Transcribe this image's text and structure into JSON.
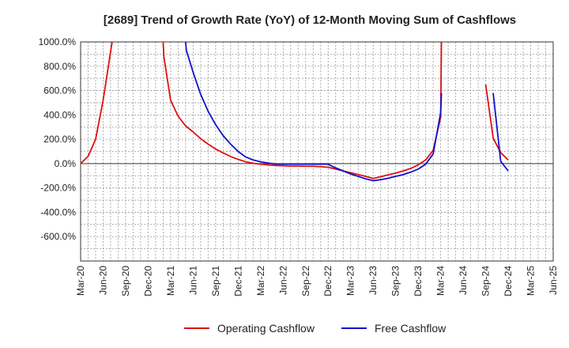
{
  "chart_data": {
    "type": "line",
    "title": "[2689]  Trend of Growth Rate (YoY) of 12-Month Moving Sum of Cashflows",
    "xlabel": "",
    "ylabel": "",
    "ylim": [
      -800,
      1000
    ],
    "yticks": [
      1000,
      800,
      600,
      400,
      200,
      0,
      -200,
      -400,
      -600
    ],
    "ytick_labels": [
      "1000.0%",
      "800.0%",
      "600.0%",
      "400.0%",
      "200.0%",
      "0.0%",
      "-200.0%",
      "-400.0%",
      "-600.0%"
    ],
    "xlim": [
      "2020-03",
      "2025-06"
    ],
    "xtick_labels": [
      "Mar-20",
      "Jun-20",
      "Sep-20",
      "Dec-20",
      "Mar-21",
      "Jun-21",
      "Sep-21",
      "Dec-21",
      "Mar-22",
      "Jun-22",
      "Sep-22",
      "Dec-22",
      "Mar-23",
      "Jun-23",
      "Sep-23",
      "Dec-23",
      "Mar-24",
      "Jun-24",
      "Sep-24",
      "Dec-24",
      "Mar-25",
      "Jun-25"
    ],
    "grid": true,
    "legend_position": "bottom",
    "series": [
      {
        "name": "Operating Cashflow",
        "color": "#dd1111",
        "points": [
          [
            "2020-03",
            0
          ],
          [
            "2020-04",
            60
          ],
          [
            "2020-05",
            200
          ],
          [
            "2020-06",
            520
          ],
          [
            "2020-07",
            920
          ],
          [
            "2020-07.2",
            1000
          ],
          null,
          [
            "2021-02",
            1000
          ],
          [
            "2021-02.1",
            880
          ],
          [
            "2021-03",
            520
          ],
          [
            "2021-04",
            390
          ],
          [
            "2021-05",
            310
          ],
          [
            "2021-06",
            260
          ],
          [
            "2021-07",
            205
          ],
          [
            "2021-08",
            160
          ],
          [
            "2021-09",
            120
          ],
          [
            "2021-10",
            88
          ],
          [
            "2021-11",
            58
          ],
          [
            "2021-12",
            35
          ],
          [
            "2022-01",
            15
          ],
          [
            "2022-02",
            3
          ],
          [
            "2022-03",
            -5
          ],
          [
            "2022-04",
            -10
          ],
          [
            "2022-05",
            -15
          ],
          [
            "2022-06",
            -18
          ],
          [
            "2022-07",
            -20
          ],
          [
            "2022-08",
            -20
          ],
          [
            "2022-09",
            -22
          ],
          [
            "2022-10",
            -22
          ],
          [
            "2022-11",
            -25
          ],
          [
            "2022-12",
            -30
          ],
          [
            "2023-01",
            -45
          ],
          [
            "2023-02",
            -60
          ],
          [
            "2023-03",
            -75
          ],
          [
            "2023-04",
            -90
          ],
          [
            "2023-05",
            -105
          ],
          [
            "2023-06",
            -122
          ],
          [
            "2023-07",
            -108
          ],
          [
            "2023-08",
            -92
          ],
          [
            "2023-09",
            -78
          ],
          [
            "2023-10",
            -60
          ],
          [
            "2023-11",
            -40
          ],
          [
            "2023-12",
            -10
          ],
          [
            "2024-01",
            30
          ],
          [
            "2024-02",
            110
          ],
          [
            "2024-03",
            380
          ],
          [
            "2024-03.1",
            1000
          ],
          null,
          [
            "2024-09",
            650
          ],
          [
            "2024-10",
            210
          ],
          [
            "2024-11",
            90
          ],
          [
            "2024-12",
            30
          ]
        ]
      },
      {
        "name": "Free Cashflow",
        "color": "#1111cc",
        "points": [
          [
            "2021-05",
            1000
          ],
          [
            "2021-05.1",
            930
          ],
          [
            "2021-06",
            750
          ],
          [
            "2021-07",
            570
          ],
          [
            "2021-08",
            430
          ],
          [
            "2021-09",
            320
          ],
          [
            "2021-10",
            230
          ],
          [
            "2021-11",
            160
          ],
          [
            "2021-12",
            100
          ],
          [
            "2022-01",
            55
          ],
          [
            "2022-02",
            30
          ],
          [
            "2022-03",
            15
          ],
          [
            "2022-04",
            5
          ],
          [
            "2022-05",
            -3
          ],
          [
            "2022-06",
            -5
          ],
          [
            "2022-07",
            -5
          ],
          [
            "2022-08",
            -5
          ],
          [
            "2022-09",
            -5
          ],
          [
            "2022-10",
            -5
          ],
          [
            "2022-11",
            -5
          ],
          [
            "2022-12",
            -5
          ],
          [
            "2023-01",
            -35
          ],
          [
            "2023-02",
            -60
          ],
          [
            "2023-03",
            -85
          ],
          [
            "2023-04",
            -105
          ],
          [
            "2023-05",
            -125
          ],
          [
            "2023-06",
            -140
          ],
          [
            "2023-07",
            -132
          ],
          [
            "2023-08",
            -120
          ],
          [
            "2023-09",
            -105
          ],
          [
            "2023-10",
            -90
          ],
          [
            "2023-11",
            -70
          ],
          [
            "2023-12",
            -45
          ],
          [
            "2024-01",
            -5
          ],
          [
            "2024-02",
            80
          ],
          [
            "2024-03",
            420
          ],
          [
            "2024-03.1",
            580
          ],
          null,
          [
            "2024-10",
            580
          ],
          [
            "2024-11",
            20
          ],
          [
            "2024-12",
            -60
          ]
        ]
      }
    ]
  }
}
